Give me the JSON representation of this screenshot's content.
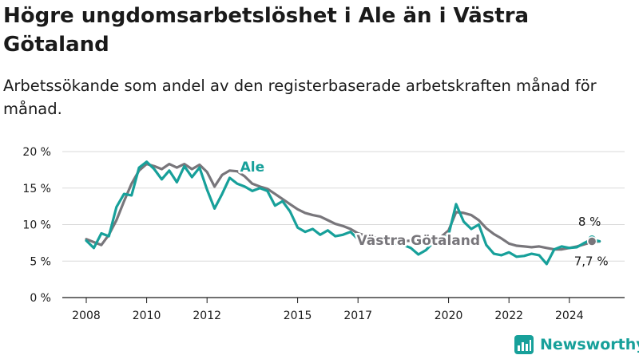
{
  "title": "Högre ungdomsarbetslöshet i Ale än i Västra Götaland",
  "subtitle": "Arbetssökande som andel av den registerbaserade arbetskraften månad för månad.",
  "brand": "Newsworthy",
  "colors": {
    "ale": "#17a09a",
    "vg": "#78767b",
    "axis": "#1a1a1a",
    "grid": "#d9d9d9"
  },
  "chart_data": {
    "type": "line",
    "y_tick_labels": [
      "0 %",
      "5 %",
      "10 %",
      "15 %",
      "20 %"
    ],
    "y_ticks": [
      0,
      5,
      10,
      15,
      20
    ],
    "x_tick_labels": [
      "2008",
      "2010",
      "2012",
      "2015",
      "2017",
      "2020",
      "2022",
      "2024"
    ],
    "x_ticks": [
      2008,
      2010,
      2012,
      2015,
      2017,
      2020,
      2022,
      2024
    ],
    "xlim": [
      2008.0,
      2025.0
    ],
    "ylim": [
      0,
      20
    ],
    "grid": true,
    "series": [
      {
        "name": "Västra Götaland",
        "color": "#78767b",
        "x": [
          2008.0,
          2008.25,
          2008.5,
          2008.75,
          2009.0,
          2009.25,
          2009.5,
          2009.75,
          2010.0,
          2010.25,
          2010.5,
          2010.75,
          2011.0,
          2011.25,
          2011.5,
          2011.75,
          2012.0,
          2012.25,
          2012.5,
          2012.75,
          2013.0,
          2013.25,
          2013.5,
          2013.75,
          2014.0,
          2014.25,
          2014.5,
          2014.75,
          2015.0,
          2015.25,
          2015.5,
          2015.75,
          2016.0,
          2016.25,
          2016.5,
          2016.75,
          2017.0,
          2017.25,
          2017.5,
          2017.75,
          2018.0,
          2018.25,
          2018.5,
          2018.75,
          2019.0,
          2019.25,
          2019.5,
          2019.75,
          2020.0,
          2020.25,
          2020.5,
          2020.75,
          2021.0,
          2021.25,
          2021.5,
          2021.75,
          2022.0,
          2022.25,
          2022.5,
          2022.75,
          2023.0,
          2023.25,
          2023.5,
          2023.75,
          2024.0,
          2024.25,
          2024.5,
          2024.75,
          2025.0
        ],
        "values": [
          8.0,
          7.6,
          7.2,
          8.6,
          10.6,
          13.2,
          15.6,
          17.4,
          18.3,
          18.0,
          17.6,
          18.3,
          17.8,
          18.3,
          17.6,
          18.2,
          17.2,
          15.2,
          16.8,
          17.4,
          17.3,
          16.6,
          15.6,
          15.2,
          14.9,
          14.2,
          13.5,
          12.8,
          12.1,
          11.6,
          11.3,
          11.1,
          10.6,
          10.1,
          9.8,
          9.4,
          8.8,
          8.5,
          8.3,
          8.1,
          7.9,
          7.8,
          7.7,
          7.8,
          7.9,
          8.0,
          8.1,
          8.3,
          9.2,
          11.7,
          11.6,
          11.3,
          10.6,
          9.5,
          8.7,
          8.1,
          7.4,
          7.1,
          7.0,
          6.9,
          7.0,
          6.8,
          6.6,
          6.6,
          6.8,
          7.0,
          7.3,
          7.6,
          7.7
        ]
      },
      {
        "name": "Ale",
        "color": "#17a09a",
        "x": [
          2008.0,
          2008.25,
          2008.5,
          2008.75,
          2009.0,
          2009.25,
          2009.5,
          2009.75,
          2010.0,
          2010.25,
          2010.5,
          2010.75,
          2011.0,
          2011.25,
          2011.5,
          2011.75,
          2012.0,
          2012.25,
          2012.5,
          2012.75,
          2013.0,
          2013.25,
          2013.5,
          2013.75,
          2014.0,
          2014.25,
          2014.5,
          2014.75,
          2015.0,
          2015.25,
          2015.5,
          2015.75,
          2016.0,
          2016.25,
          2016.5,
          2016.75,
          2017.0,
          2017.25,
          2017.5,
          2017.75,
          2018.0,
          2018.25,
          2018.5,
          2018.75,
          2019.0,
          2019.25,
          2019.5,
          2019.75,
          2020.0,
          2020.25,
          2020.5,
          2020.75,
          2021.0,
          2021.25,
          2021.5,
          2021.75,
          2022.0,
          2022.25,
          2022.5,
          2022.75,
          2023.0,
          2023.25,
          2023.5,
          2023.75,
          2024.0,
          2024.25,
          2024.5,
          2024.75,
          2025.0
        ],
        "values": [
          7.8,
          6.8,
          8.8,
          8.4,
          12.4,
          14.2,
          14.0,
          17.8,
          18.6,
          17.6,
          16.2,
          17.4,
          15.8,
          18.0,
          16.5,
          17.8,
          14.8,
          12.2,
          14.2,
          16.4,
          15.6,
          15.2,
          14.6,
          15.0,
          14.6,
          12.6,
          13.2,
          11.8,
          9.6,
          9.0,
          9.4,
          8.6,
          9.2,
          8.4,
          8.6,
          9.0,
          8.0,
          7.8,
          7.6,
          7.6,
          7.5,
          7.4,
          7.2,
          6.8,
          5.9,
          6.5,
          7.6,
          7.9,
          8.6,
          12.8,
          10.4,
          9.4,
          10.0,
          7.2,
          6.0,
          5.8,
          6.2,
          5.6,
          5.7,
          6.0,
          5.8,
          4.6,
          6.6,
          7.0,
          6.8,
          6.9,
          7.5,
          8.0,
          7.7
        ]
      }
    ],
    "annotations": [
      {
        "text": "Ale",
        "series": "Ale",
        "x": 2013.5,
        "y": 16.5
      },
      {
        "text": "Västra Götaland",
        "series": "Västra Götaland",
        "x": 2019.0,
        "y": 7.0
      },
      {
        "text": "8 %",
        "series": "Ale",
        "x": 2024.75,
        "y": 8.0
      },
      {
        "text": "7,7 %",
        "series": "Västra Götaland",
        "x": 2024.75,
        "y": 7.7
      }
    ]
  }
}
